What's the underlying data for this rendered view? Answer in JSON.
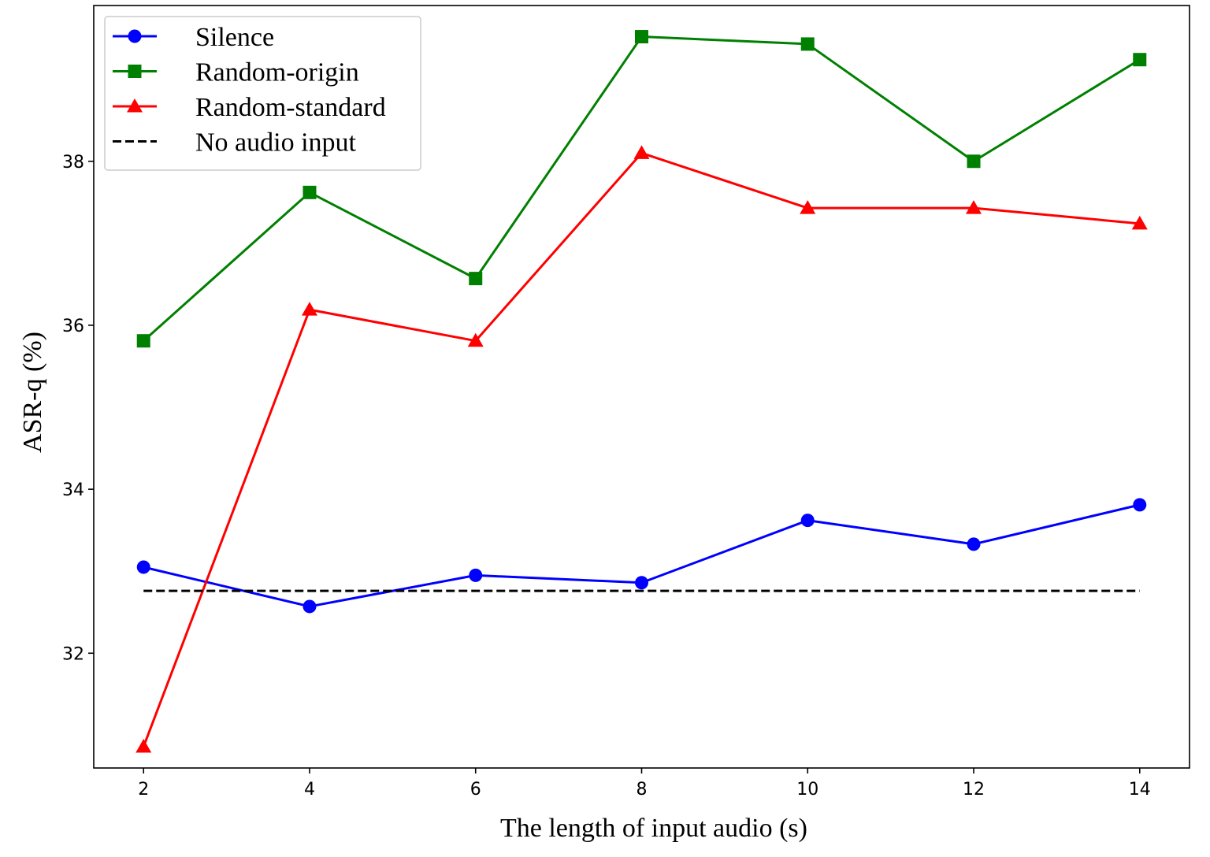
{
  "chart_data": {
    "type": "line",
    "xlabel": "The length of input audio (s)",
    "ylabel": "ASR-q (%)",
    "x": [
      2,
      4,
      6,
      8,
      10,
      12,
      14
    ],
    "xticks": [
      2,
      4,
      6,
      8,
      10,
      12,
      14
    ],
    "yticks": [
      32,
      34,
      36,
      38
    ],
    "xlim": [
      1.4,
      14.6
    ],
    "ylim": [
      30.6,
      39.9
    ],
    "grid": false,
    "legend_position": "top-left",
    "series": [
      {
        "name": "Silence",
        "color": "#0000ff",
        "marker": "circle",
        "values": [
          33.05,
          32.57,
          32.95,
          32.86,
          33.62,
          33.33,
          33.81
        ]
      },
      {
        "name": "Random-origin",
        "color": "#008000",
        "marker": "square",
        "values": [
          35.81,
          37.62,
          36.57,
          39.52,
          39.43,
          38.0,
          39.24
        ]
      },
      {
        "name": "Random-standard",
        "color": "#ff0000",
        "marker": "triangle",
        "values": [
          30.86,
          36.19,
          35.81,
          38.1,
          37.43,
          37.43,
          37.24
        ]
      },
      {
        "name": "No audio input",
        "color": "#000000",
        "marker": "none",
        "dashed": true,
        "values": [
          32.76,
          32.76,
          32.76,
          32.76,
          32.76,
          32.76,
          32.76
        ]
      }
    ]
  }
}
